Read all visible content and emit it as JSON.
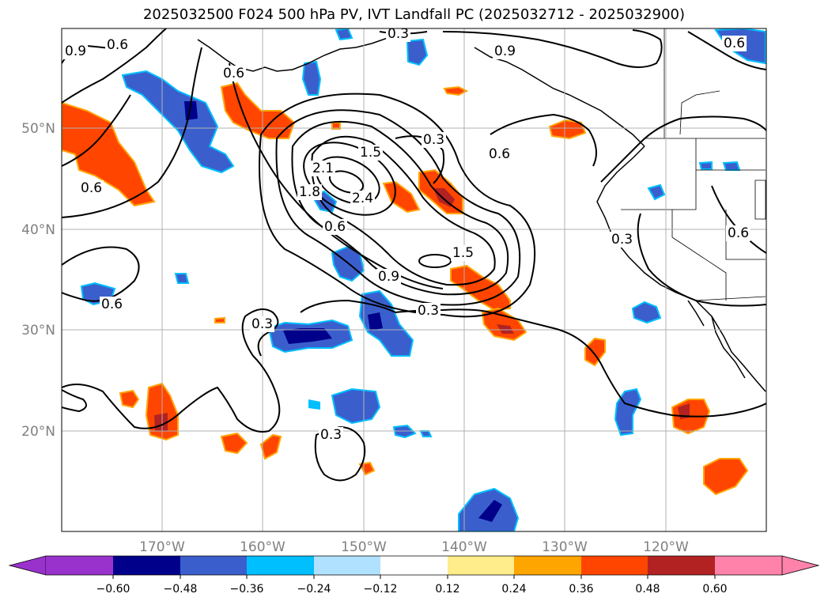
{
  "title": "2025032500 F024 500 hPa PV, IVT Landfall PC (2025032712 - 2025032900)",
  "axes": {
    "lon_ticks": [
      "170°W",
      "160°W",
      "150°W",
      "140°W",
      "130°W",
      "120°W"
    ],
    "lat_ticks": [
      "50°N",
      "40°N",
      "30°N",
      "20°N"
    ],
    "grid": true
  },
  "contour_labels": [
    {
      "id": "c1",
      "text": "0.6"
    },
    {
      "id": "c2",
      "text": "0.9"
    },
    {
      "id": "c3",
      "text": "0.3"
    },
    {
      "id": "c4",
      "text": "0.6"
    },
    {
      "id": "c5",
      "text": "0.9"
    },
    {
      "id": "c6",
      "text": "0.6"
    },
    {
      "id": "c7",
      "text": "0.3"
    },
    {
      "id": "c8",
      "text": "0.6"
    },
    {
      "id": "c9",
      "text": "1.5"
    },
    {
      "id": "c10",
      "text": "2.1"
    },
    {
      "id": "c11",
      "text": "2.4"
    },
    {
      "id": "c12",
      "text": "1.8"
    },
    {
      "id": "c13",
      "text": "0.6"
    },
    {
      "id": "c14",
      "text": "1.5"
    },
    {
      "id": "c15",
      "text": "0.9"
    },
    {
      "id": "c16",
      "text": "0.3"
    },
    {
      "id": "c17",
      "text": "0.6"
    },
    {
      "id": "c18",
      "text": "0.6"
    },
    {
      "id": "c19",
      "text": "0.3"
    },
    {
      "id": "c20",
      "text": "0.3"
    },
    {
      "id": "c21",
      "text": "0.3"
    },
    {
      "id": "c22",
      "text": "0.6"
    }
  ],
  "colorbar": {
    "ticks": [
      "−0.60",
      "−0.48",
      "−0.36",
      "−0.24",
      "−0.12",
      "0.12",
      "0.24",
      "0.36",
      "0.48",
      "0.60"
    ],
    "colors": [
      "#9932cc",
      "#00008b",
      "#3a5fcd",
      "#00bfff",
      "#b0e2ff",
      "#ffffff",
      "#ffec8b",
      "#ffa500",
      "#ff4500",
      "#b22222",
      "#ff82ab"
    ]
  },
  "colors": {
    "grid": "#b0b0b0",
    "contour": "#000000",
    "tick_text": "#808080"
  }
}
